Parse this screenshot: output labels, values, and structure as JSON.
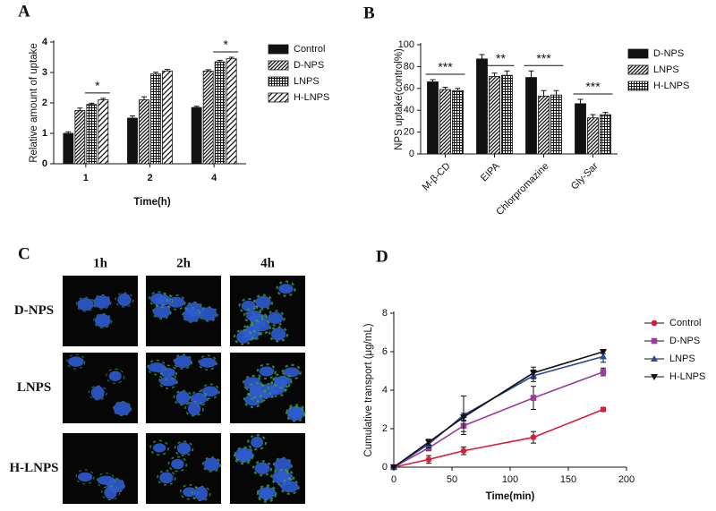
{
  "chart_data": [
    {
      "type": "bar",
      "panel": "A",
      "categories": [
        "1",
        "2",
        "4"
      ],
      "x_label": "Time(h)",
      "y_label": "Relative amount of uptake",
      "ylim": [
        0,
        4
      ],
      "yticks": [
        0,
        1,
        2,
        3,
        4
      ],
      "series": [
        {
          "name": "Control",
          "color": "#111111",
          "pattern": "solid",
          "values": [
            1.0,
            1.5,
            1.85
          ],
          "errors": [
            0.05,
            0.07,
            0.04
          ]
        },
        {
          "name": "D-NPS",
          "color": "#111111",
          "pattern": "diagonal",
          "values": [
            1.75,
            2.1,
            3.05
          ],
          "errors": [
            0.08,
            0.1,
            0.04
          ]
        },
        {
          "name": "LNPS",
          "color": "#111111",
          "pattern": "crosshatch",
          "values": [
            1.95,
            2.95,
            3.35
          ],
          "errors": [
            0.04,
            0.06,
            0.05
          ]
        },
        {
          "name": "H-LNPS",
          "color": "#111111",
          "pattern": "diagonal-wide",
          "values": [
            2.1,
            3.05,
            3.45
          ],
          "errors": [
            0.05,
            0.05,
            0.05
          ]
        }
      ],
      "annotations": [
        "*",
        "*"
      ]
    },
    {
      "type": "bar",
      "panel": "B",
      "categories": [
        "M-β-CD",
        "EIPA",
        "Chlorpromazine",
        "Gly-Sar"
      ],
      "y_label": "NPS uptake(control%)",
      "ylim": [
        0,
        100
      ],
      "yticks": [
        0,
        20,
        40,
        60,
        80,
        100
      ],
      "series": [
        {
          "name": "D-NPS",
          "color": "#111111",
          "pattern": "solid",
          "values": [
            66,
            87,
            70,
            46
          ],
          "errors": [
            2,
            4,
            6,
            4
          ]
        },
        {
          "name": "LNPS",
          "color": "#111111",
          "pattern": "diagonal",
          "values": [
            59,
            71,
            53,
            33
          ],
          "errors": [
            2,
            3,
            5,
            3
          ]
        },
        {
          "name": "H-LNPS",
          "color": "#111111",
          "pattern": "crosshatch",
          "values": [
            58,
            72,
            54,
            36
          ],
          "errors": [
            2,
            4,
            4,
            2
          ]
        }
      ],
      "annotations": [
        "***",
        "**",
        "***",
        "***"
      ]
    },
    {
      "type": "line",
      "panel": "D",
      "x": [
        0,
        30,
        60,
        120,
        180
      ],
      "x_label": "Time(min)",
      "y_label": "Cumulative transport (μg/mL)",
      "xlim": [
        0,
        200
      ],
      "xticks": [
        0,
        50,
        100,
        150,
        200
      ],
      "ylim": [
        0,
        8
      ],
      "yticks": [
        0,
        2,
        4,
        6,
        8
      ],
      "series": [
        {
          "name": "Control",
          "color": "#d81e3a",
          "marker": "circle",
          "values": [
            0,
            0.4,
            0.85,
            1.55,
            3.0
          ],
          "errors": [
            0,
            0.2,
            0.2,
            0.3,
            0.1
          ]
        },
        {
          "name": "D-NPS",
          "color": "#9b3b9e",
          "marker": "square",
          "values": [
            0,
            1.0,
            2.15,
            3.6,
            4.95
          ],
          "errors": [
            0,
            0.15,
            0.3,
            0.6,
            0.2
          ]
        },
        {
          "name": "LNPS",
          "color": "#2a4a9a",
          "marker": "triangle",
          "values": [
            0,
            1.2,
            2.7,
            4.75,
            5.75
          ],
          "errors": [
            0,
            0.2,
            1.0,
            0.3,
            0.3
          ]
        },
        {
          "name": "H-LNPS",
          "color": "#111111",
          "marker": "triangle-down",
          "values": [
            0,
            1.3,
            2.6,
            4.9,
            6.0
          ],
          "errors": [
            0,
            0.15,
            0.2,
            0.3,
            0.1
          ]
        }
      ]
    }
  ],
  "microscopy": {
    "panel": "C",
    "columns": [
      "1h",
      "2h",
      "4h"
    ],
    "rows": [
      "D-NPS",
      "LNPS",
      "H-LNPS"
    ]
  }
}
